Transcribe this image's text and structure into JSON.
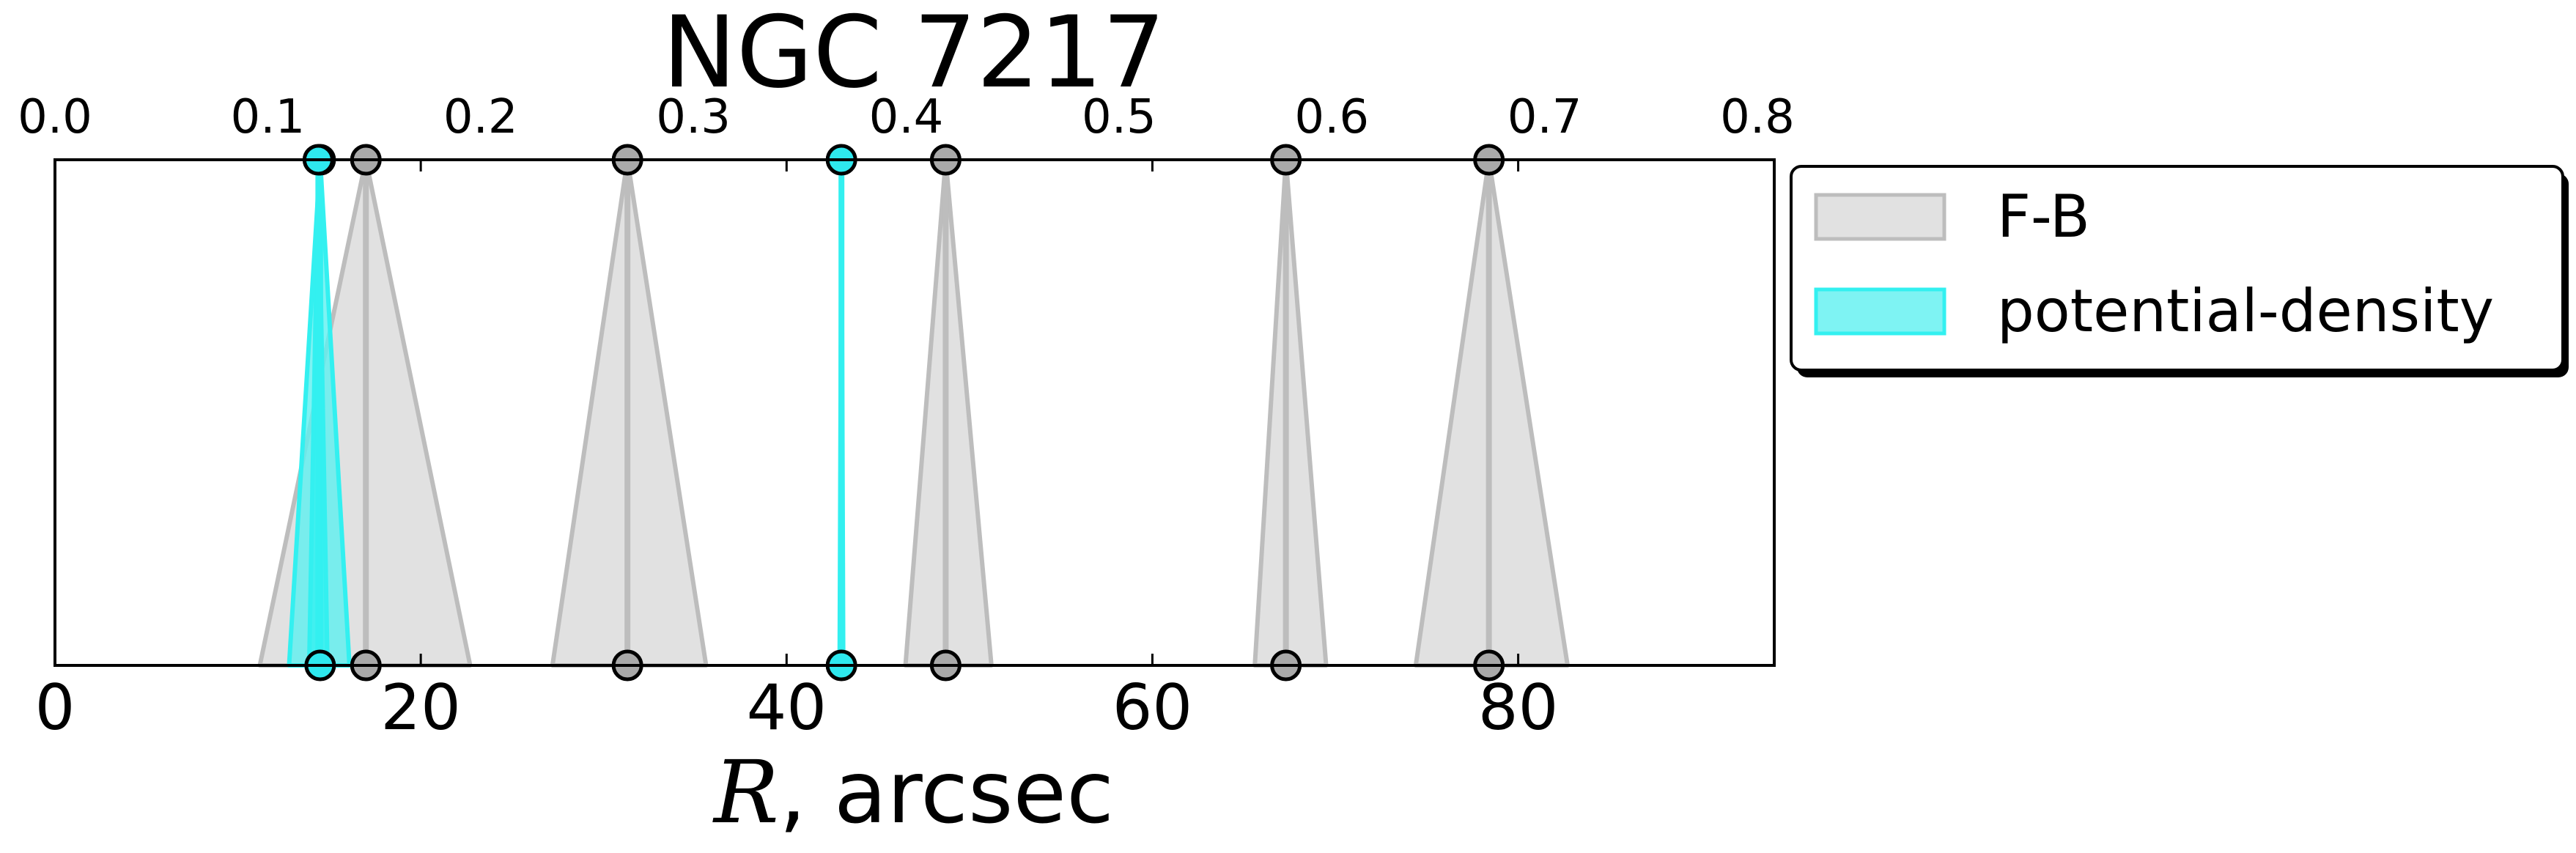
{
  "chart_data": {
    "type": "area",
    "title": "NGC 7217",
    "xlabel": {
      "variable": "R",
      "rest": ", arcsec"
    },
    "xlim": [
      0,
      94
    ],
    "xticks": [
      "0",
      "20",
      "40",
      "60",
      "80"
    ],
    "top_axis": {
      "xlim": [
        0.0,
        0.8
      ],
      "ticks": [
        "0.0",
        "0.1",
        "0.2",
        "0.3",
        "0.4",
        "0.5",
        "0.6",
        "0.7",
        "0.8"
      ]
    },
    "legend_position": "outside-right-top",
    "series": [
      {
        "name": "F-B",
        "color": "#bdbdbd",
        "fill_color": "#d9d9d9",
        "marker_face": "#a9a9a9",
        "markers": "both",
        "features": [
          {
            "r": 17.0,
            "low": 11.2,
            "high": 22.7
          },
          {
            "r": 31.3,
            "low": 27.2,
            "high": 35.6
          },
          {
            "r": 48.7,
            "low": 46.5,
            "high": 51.2
          },
          {
            "r": 67.3,
            "low": 65.6,
            "high": 69.5
          },
          {
            "r": 78.4,
            "low": 74.4,
            "high": 82.7
          }
        ]
      },
      {
        "name": "potential-density",
        "color": "#33f0f0",
        "fill_color": "#5ef0f0",
        "marker_face": "#2ee8ee",
        "markers": "both",
        "features": [
          {
            "r": 14.5,
            "low": 12.8,
            "high": 16.1
          },
          {
            "r": 43.0,
            "low": 42.9,
            "high": 43.1
          }
        ]
      },
      {
        "name": "",
        "color": "#33f0f0",
        "fill_color": "#33f0f0",
        "marker_face": "#2ee8ee",
        "markers": "top",
        "features": [
          {
            "r": 14.4,
            "low": 13.9,
            "high": 14.9
          }
        ]
      }
    ]
  }
}
